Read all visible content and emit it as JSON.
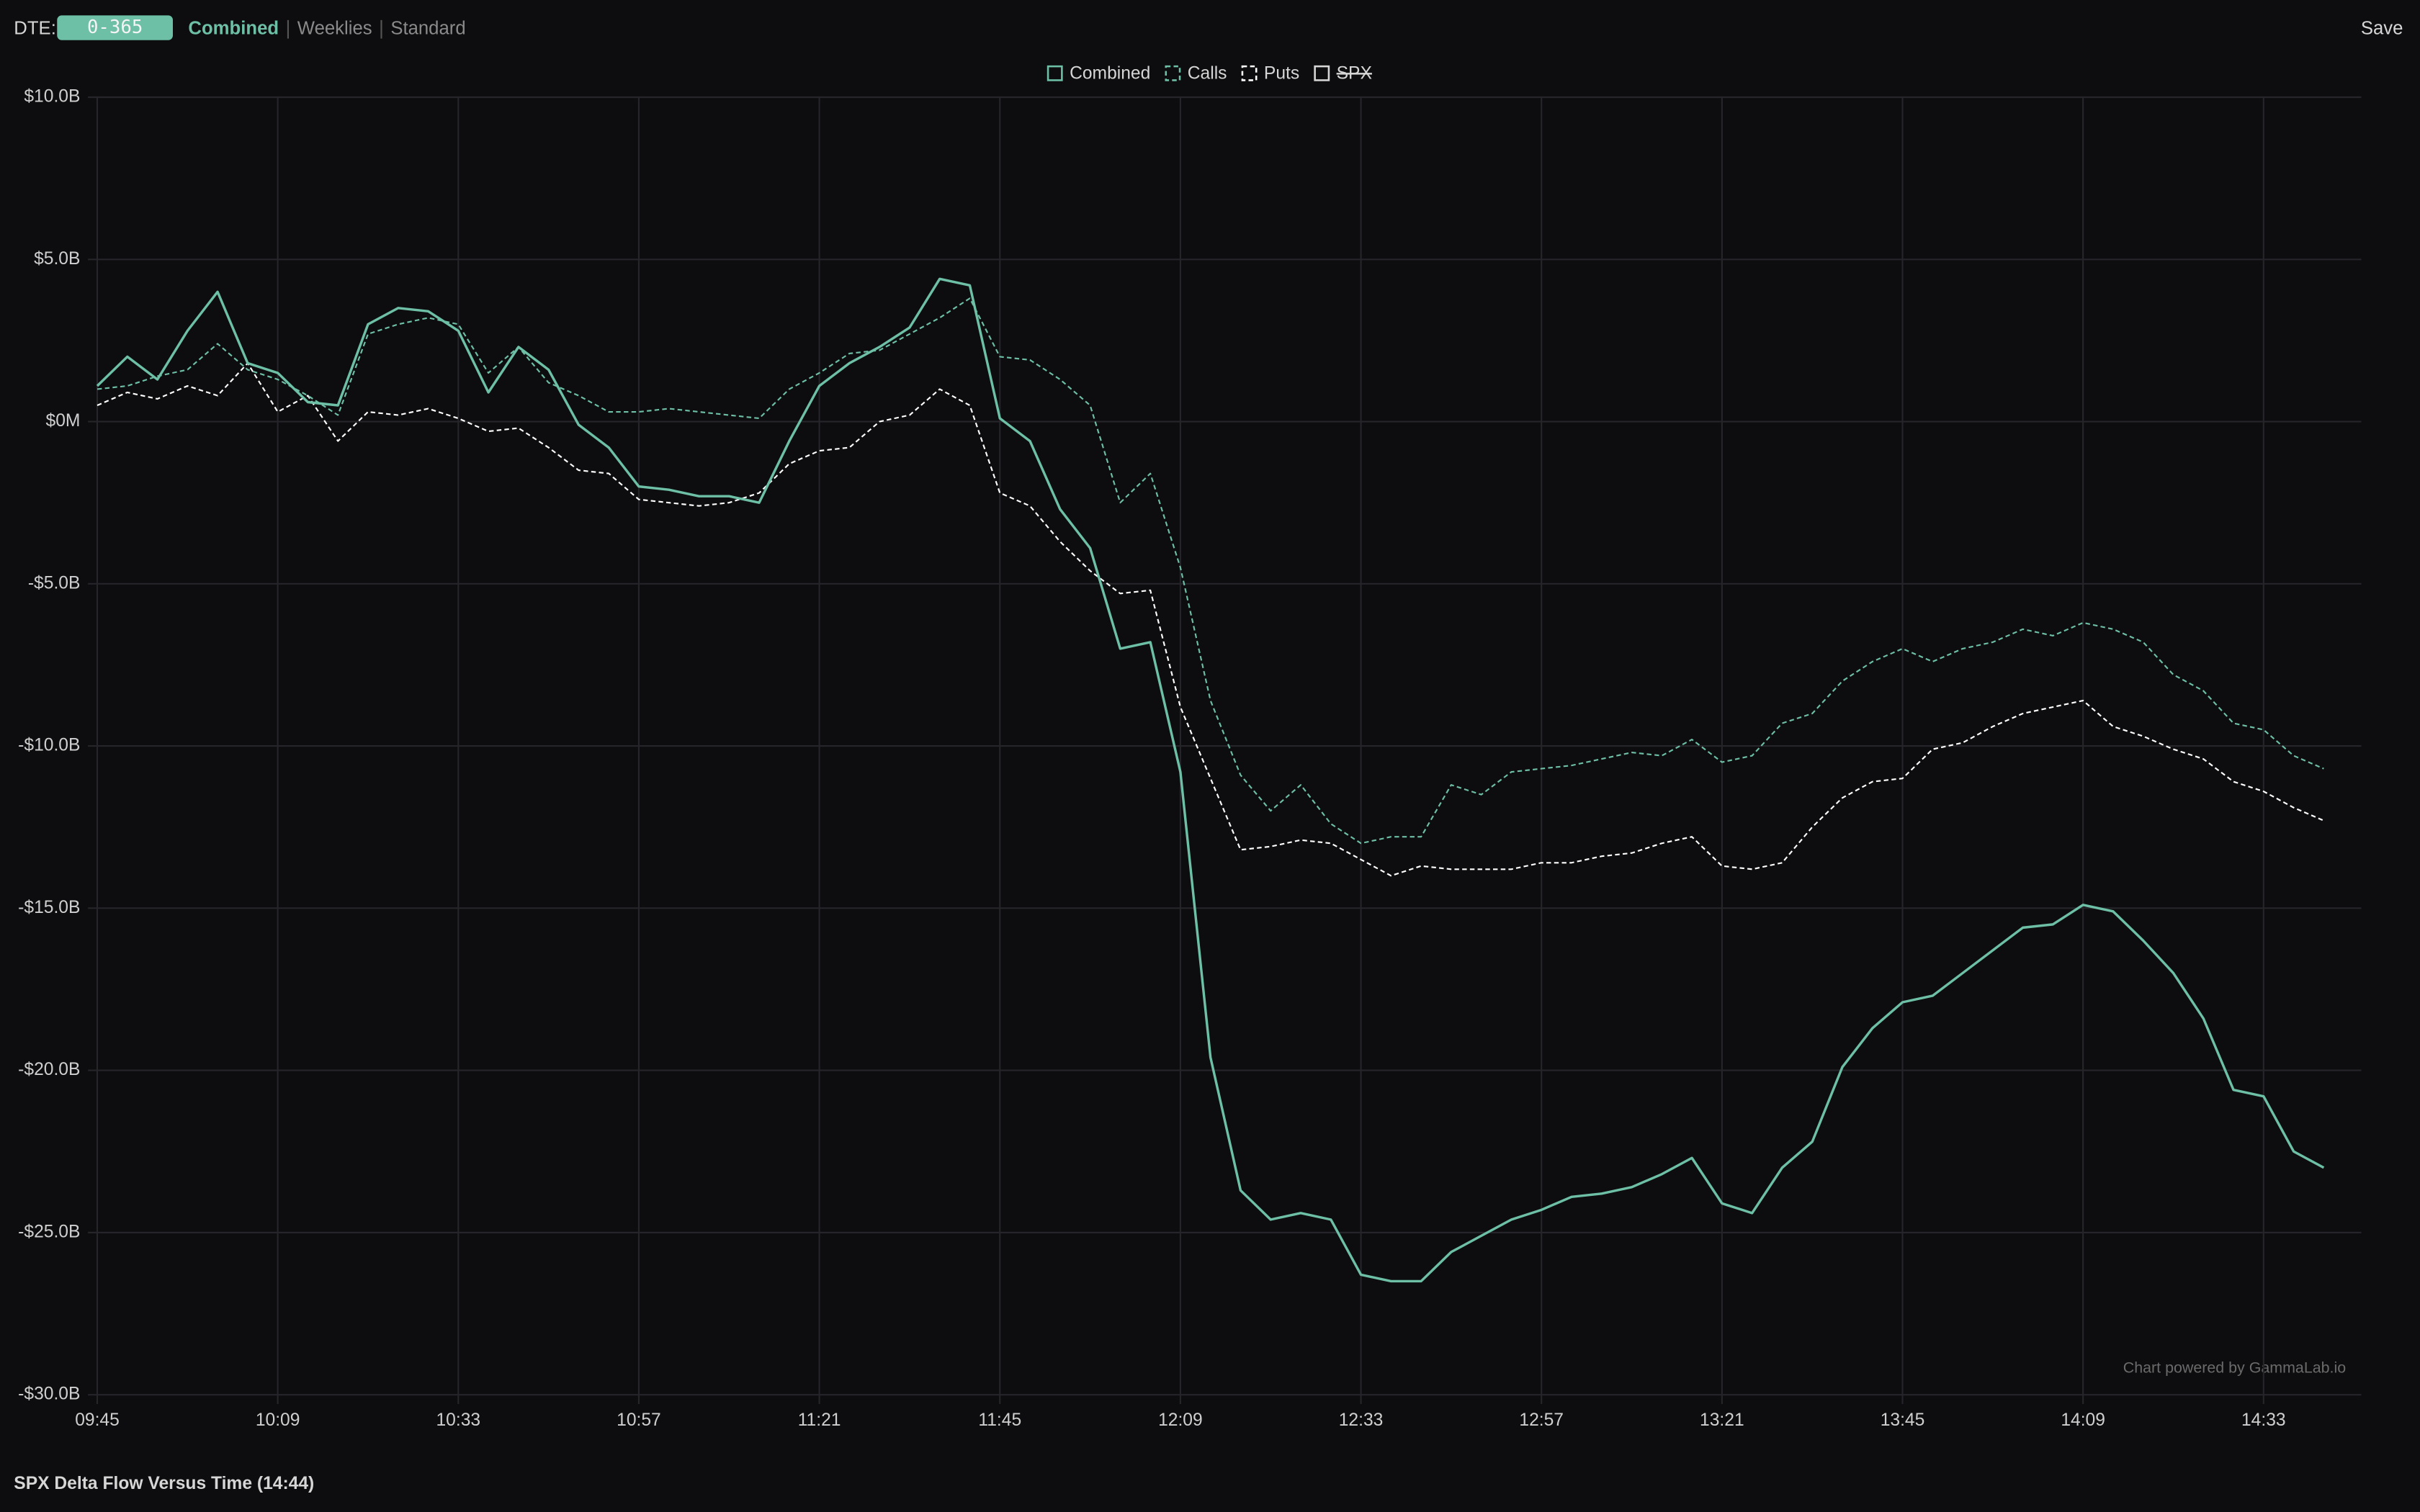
{
  "header": {
    "dte_label": "DTE:",
    "dte_value": "0-365",
    "tabs": [
      "Combined",
      "Weeklies",
      "Standard"
    ],
    "active_tab": "Combined",
    "save": "Save"
  },
  "chart_data": {
    "type": "line",
    "title": "SPX Delta Flow Versus Time (14:44)",
    "credit": "Chart powered by GammaLab.io",
    "x": [
      "09:45",
      "09:49",
      "09:53",
      "09:57",
      "10:01",
      "10:05",
      "10:09",
      "10:13",
      "10:17",
      "10:21",
      "10:25",
      "10:29",
      "10:33",
      "10:37",
      "10:41",
      "10:45",
      "10:49",
      "10:53",
      "10:57",
      "11:01",
      "11:05",
      "11:09",
      "11:13",
      "11:17",
      "11:21",
      "11:25",
      "11:29",
      "11:33",
      "11:37",
      "11:41",
      "11:45",
      "11:49",
      "11:53",
      "11:57",
      "12:01",
      "12:05",
      "12:09",
      "12:13",
      "12:17",
      "12:21",
      "12:25",
      "12:29",
      "12:33",
      "12:37",
      "12:41",
      "12:45",
      "12:49",
      "12:53",
      "12:57",
      "13:01",
      "13:05",
      "13:09",
      "13:13",
      "13:17",
      "13:21",
      "13:25",
      "13:29",
      "13:33",
      "13:37",
      "13:41",
      "13:45",
      "13:49",
      "13:53",
      "13:57",
      "14:01",
      "14:05",
      "14:09",
      "14:13",
      "14:17",
      "14:21",
      "14:25",
      "14:29",
      "14:33",
      "14:37",
      "14:41"
    ],
    "xlim": [
      "09:45",
      "14:46"
    ],
    "xticks": [
      "09:45",
      "10:09",
      "10:33",
      "10:57",
      "11:21",
      "11:45",
      "12:09",
      "12:33",
      "12:57",
      "13:21",
      "13:45",
      "14:09",
      "14:33"
    ],
    "ylim": [
      -30,
      10
    ],
    "yticks": [
      {
        "value": -30,
        "label": "-$30.0B"
      },
      {
        "value": -25,
        "label": "-$25.0B"
      },
      {
        "value": -20,
        "label": "-$20.0B"
      },
      {
        "value": -15,
        "label": "-$15.0B"
      },
      {
        "value": -10,
        "label": "-$10.0B"
      },
      {
        "value": -5,
        "label": "-$5.0B"
      },
      {
        "value": 0,
        "label": "$0M"
      },
      {
        "value": 5,
        "label": "$5.0B"
      },
      {
        "value": 10,
        "label": "$10.0B"
      }
    ],
    "grid": true,
    "legend_position": "top",
    "series": [
      {
        "name": "Combined",
        "color": "#6dbfa6",
        "dashed": false,
        "values": [
          1.1,
          2.0,
          1.3,
          2.8,
          4.0,
          1.8,
          1.5,
          0.6,
          0.5,
          3.0,
          3.5,
          3.4,
          2.8,
          0.9,
          2.3,
          1.6,
          -0.1,
          -0.8,
          -2.0,
          -2.1,
          -2.3,
          -2.3,
          -2.5,
          -0.6,
          1.1,
          1.8,
          2.3,
          2.9,
          4.4,
          4.2,
          0.1,
          -0.6,
          -2.7,
          -3.9,
          -7.0,
          -6.8,
          -10.8,
          -19.6,
          -23.7,
          -24.6,
          -24.4,
          -24.6,
          -26.3,
          -26.5,
          -26.5,
          -25.6,
          -25.1,
          -24.6,
          -24.3,
          -23.9,
          -23.8,
          -23.6,
          -23.2,
          -22.7,
          -24.1,
          -24.4,
          -23.0,
          -22.2,
          -19.9,
          -18.7,
          -17.9,
          -17.7,
          -17.0,
          -16.3,
          -15.6,
          -15.5,
          -14.9,
          -15.1,
          -16.0,
          -17.0,
          -18.4,
          -20.6,
          -20.8,
          -22.5,
          -23.0
        ]
      },
      {
        "name": "Calls",
        "color": "#6dbfa6",
        "dashed": true,
        "values": [
          1.0,
          1.1,
          1.4,
          1.6,
          2.4,
          1.6,
          1.3,
          0.8,
          0.2,
          2.7,
          3.0,
          3.2,
          3.0,
          1.5,
          2.3,
          1.2,
          0.8,
          0.3,
          0.3,
          0.4,
          0.3,
          0.2,
          0.1,
          1.0,
          1.5,
          2.1,
          2.2,
          2.7,
          3.2,
          3.8,
          2.0,
          1.9,
          1.3,
          0.5,
          -2.5,
          -1.6,
          -4.5,
          -8.6,
          -10.9,
          -12.0,
          -11.2,
          -12.4,
          -13.0,
          -12.8,
          -12.8,
          -11.2,
          -11.5,
          -10.8,
          -10.7,
          -10.6,
          -10.4,
          -10.2,
          -10.3,
          -9.8,
          -10.5,
          -10.3,
          -9.3,
          -9.0,
          -8.0,
          -7.4,
          -7.0,
          -7.4,
          -7.0,
          -6.8,
          -6.4,
          -6.6,
          -6.2,
          -6.4,
          -6.8,
          -7.8,
          -8.3,
          -9.3,
          -9.5,
          -10.3,
          -10.7
        ]
      },
      {
        "name": "Puts",
        "color": "#ffffff",
        "dashed": true,
        "values": [
          0.5,
          0.9,
          0.7,
          1.1,
          0.8,
          1.8,
          0.3,
          0.8,
          -0.6,
          0.3,
          0.2,
          0.4,
          0.1,
          -0.3,
          -0.2,
          -0.8,
          -1.5,
          -1.6,
          -2.4,
          -2.5,
          -2.6,
          -2.5,
          -2.2,
          -1.3,
          -0.9,
          -0.8,
          0.0,
          0.2,
          1.0,
          0.5,
          -2.2,
          -2.6,
          -3.7,
          -4.6,
          -5.3,
          -5.2,
          -8.8,
          -11.0,
          -13.2,
          -13.1,
          -12.9,
          -13.0,
          -13.5,
          -14.0,
          -13.7,
          -13.8,
          -13.8,
          -13.8,
          -13.6,
          -13.6,
          -13.4,
          -13.3,
          -13.0,
          -12.8,
          -13.7,
          -13.8,
          -13.6,
          -12.5,
          -11.6,
          -11.1,
          -11.0,
          -10.1,
          -9.9,
          -9.4,
          -9.0,
          -8.8,
          -8.6,
          -9.4,
          -9.7,
          -10.1,
          -10.4,
          -11.1,
          -11.4,
          -11.9,
          -12.3
        ]
      }
    ],
    "legend_hidden": [
      "SPX"
    ]
  }
}
